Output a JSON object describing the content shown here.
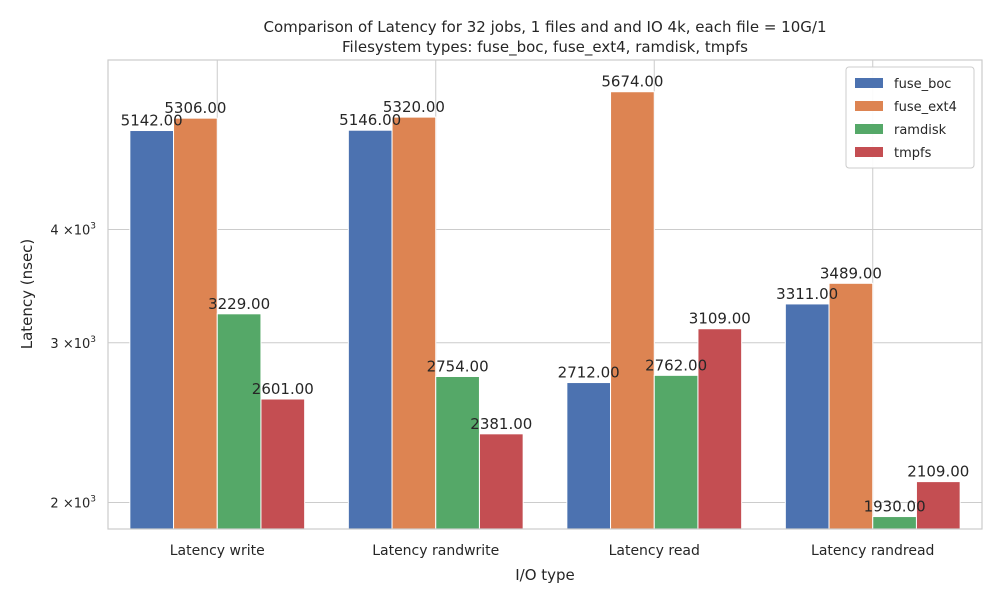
{
  "chart_data": {
    "type": "bar",
    "title_line1": "Comparison of Latency for 32 jobs, 1 files and  and IO 4k, each file = 10G/1",
    "title_line2": "Filesystem types: fuse_boc, fuse_ext4, ramdisk, tmpfs",
    "xlabel": "I/O type",
    "ylabel": "Latency (nsec)",
    "yscale": "log",
    "ylim": [
      1870,
      6150
    ],
    "yticks": [
      {
        "value": 2000,
        "mantissa": "2",
        "exponent": "3"
      },
      {
        "value": 3000,
        "mantissa": "3",
        "exponent": "3"
      },
      {
        "value": 4000,
        "mantissa": "4",
        "exponent": "3"
      }
    ],
    "tick_prefix": "×10",
    "grid": true,
    "legend_position": "top-right",
    "categories": [
      "Latency write",
      "Latency randwrite",
      "Latency read",
      "Latency randread"
    ],
    "series": [
      {
        "name": "fuse_boc",
        "color": "#4c72b0",
        "values": [
          5142,
          5146,
          2712,
          3311
        ],
        "labels": [
          "5142.00",
          "5146.00",
          "2712.00",
          "3311.00"
        ]
      },
      {
        "name": "fuse_ext4",
        "color": "#dd8452",
        "values": [
          5306,
          5320,
          5674,
          3489
        ],
        "labels": [
          "5306.00",
          "5320.00",
          "5674.00",
          "3489.00"
        ]
      },
      {
        "name": "ramdisk",
        "color": "#55a868",
        "values": [
          3229,
          2754,
          2762,
          1930
        ],
        "labels": [
          "3229.00",
          "2754.00",
          "2762.00",
          "1930.00"
        ]
      },
      {
        "name": "tmpfs",
        "color": "#c44e52",
        "values": [
          2601,
          2381,
          3109,
          2109
        ],
        "labels": [
          "2601.00",
          "2381.00",
          "3109.00",
          "2109.00"
        ]
      }
    ]
  }
}
